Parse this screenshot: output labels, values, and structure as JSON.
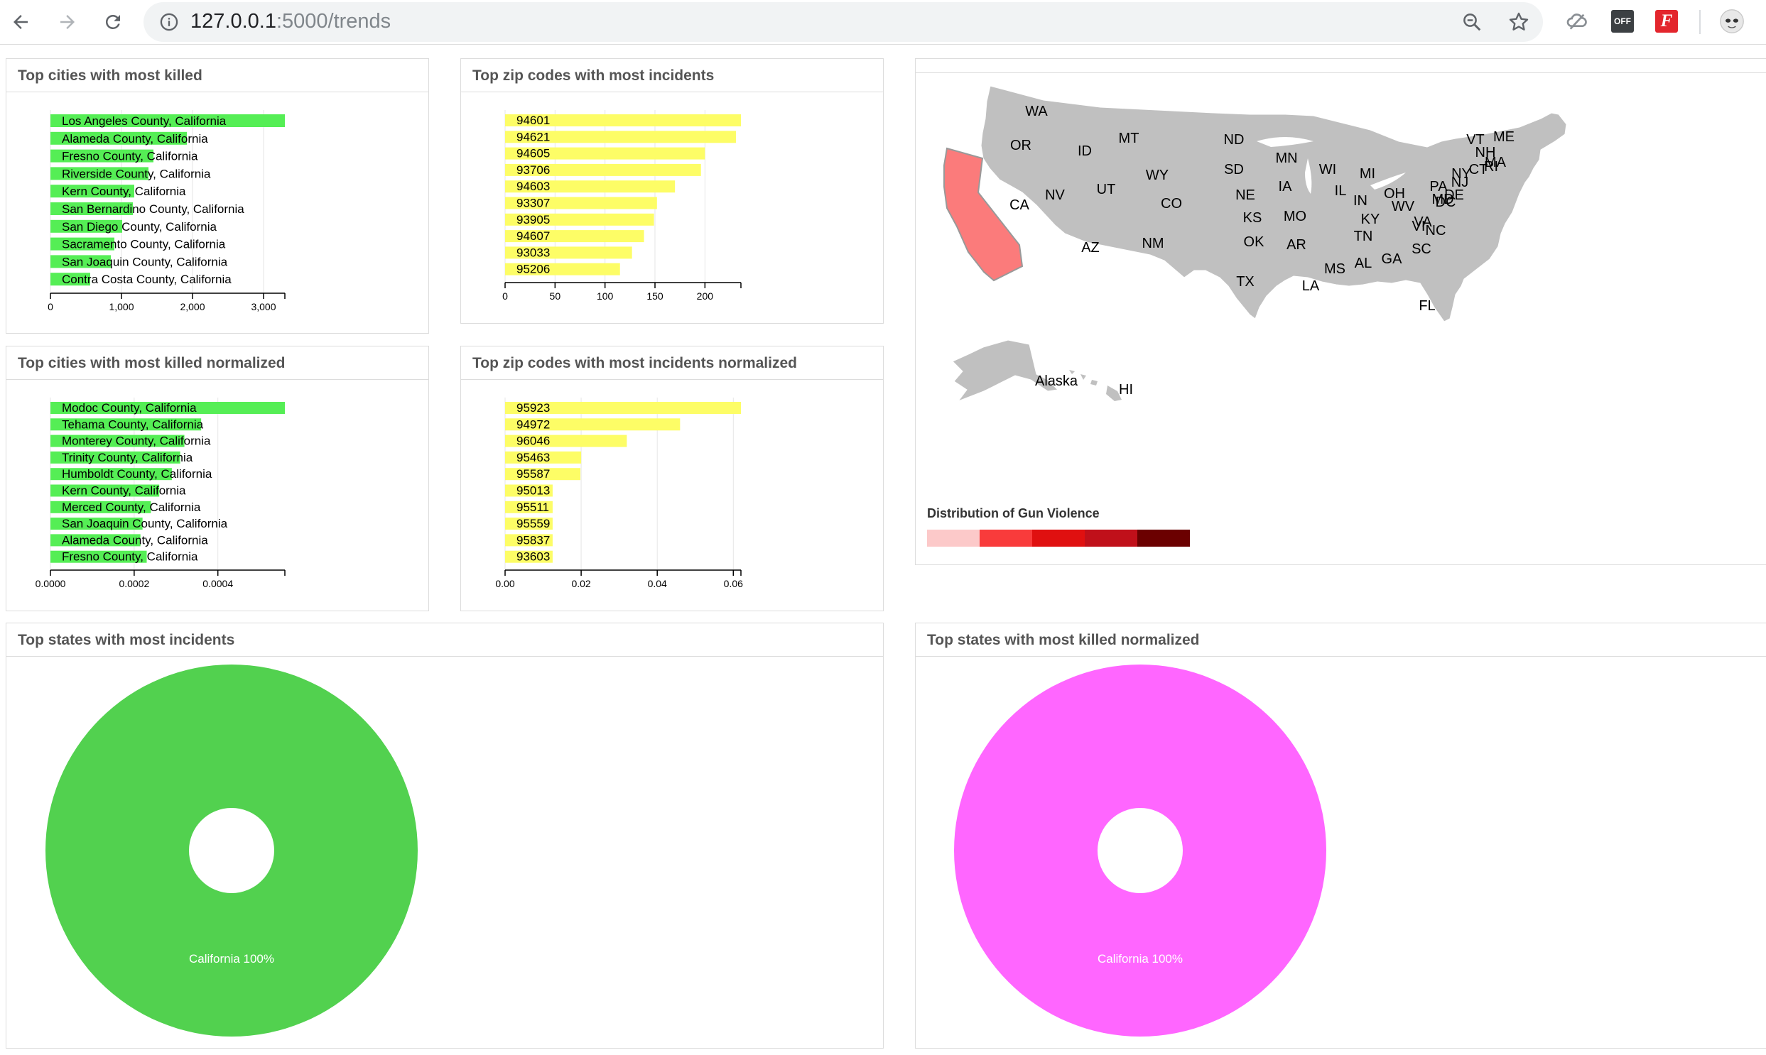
{
  "browser": {
    "url_host": "127.0.0.1",
    "url_path": ":5000/trends",
    "icons": [
      "back-arrow-icon",
      "forward-arrow-icon",
      "reload-icon",
      "info-icon",
      "zoom-icon",
      "star-icon",
      "extension-cloud-icon",
      "extension-off-icon",
      "extension-f-icon",
      "profile-avatar-icon"
    ],
    "ext_off_label": "OFF",
    "ext_f_label": "F"
  },
  "panels": {
    "cities_killed": {
      "title": "Top cities with most killed"
    },
    "zip_incidents": {
      "title": "Top zip codes with most incidents"
    },
    "cities_killed_norm": {
      "title": "Top cities with most killed normalized"
    },
    "zip_incidents_norm": {
      "title": "Top zip codes with most incidents normalized"
    },
    "states_incidents": {
      "title": "Top states with most incidents"
    },
    "states_killed_norm": {
      "title": "Top states with most killed normalized"
    }
  },
  "map": {
    "legend_title": "Distribution of Gun Violence",
    "legend_colors": [
      "#fcc9c9",
      "#f93b3b",
      "#e01010",
      "#c0101a",
      "#6b0000"
    ],
    "base_color": "#c0c0c0",
    "highlight_color": "#fb7b7b",
    "state_labels": [
      "WA",
      "OR",
      "CA",
      "NV",
      "ID",
      "MT",
      "WY",
      "UT",
      "CO",
      "AZ",
      "NM",
      "ND",
      "SD",
      "NE",
      "KS",
      "OK",
      "TX",
      "MN",
      "IA",
      "MO",
      "AR",
      "LA",
      "WI",
      "IL",
      "MI",
      "IN",
      "OH",
      "KY",
      "TN",
      "MS",
      "AL",
      "GA",
      "FL",
      "SC",
      "NC",
      "VA",
      "WV",
      "PA",
      "NY",
      "VT",
      "NH",
      "ME",
      "MA",
      "RI",
      "CT",
      "NJ",
      "DE",
      "MD",
      "DC",
      "VI",
      "Alaska",
      "HI"
    ]
  },
  "chart_data": [
    {
      "type": "bar",
      "orientation": "horizontal",
      "title": "Top cities with most killed",
      "color": "#55ee55",
      "categories": [
        "Los Angeles County, California",
        "Alameda County, California",
        "Fresno County, California",
        "Riverside County, California",
        "Kern County, California",
        "San Bernardino County, California",
        "San Diego County, California",
        "Sacramento County, California",
        "San Joaquin County, California",
        "Contra Costa County, California"
      ],
      "values": [
        3300,
        1920,
        1450,
        1380,
        1180,
        1160,
        1010,
        900,
        850,
        560
      ],
      "xlim": [
        0,
        3300
      ],
      "ticks": [
        "0",
        "1,000",
        "2,000",
        "3,000"
      ],
      "tick_values": [
        0,
        1000,
        2000,
        3000
      ]
    },
    {
      "type": "bar",
      "orientation": "horizontal",
      "title": "Top zip codes with most incidents",
      "color": "#fdfd66",
      "categories": [
        "94601",
        "94621",
        "94605",
        "93706",
        "94603",
        "93307",
        "93905",
        "94607",
        "93033",
        "95206"
      ],
      "values": [
        236,
        231,
        200,
        196,
        170,
        152,
        149,
        139,
        127,
        115
      ],
      "xlim": [
        0,
        236
      ],
      "ticks": [
        "0",
        "50",
        "100",
        "150",
        "200"
      ],
      "tick_values": [
        0,
        50,
        100,
        150,
        200
      ]
    },
    {
      "type": "bar",
      "orientation": "horizontal",
      "title": "Top cities with most killed normalized",
      "color": "#55ee55",
      "categories": [
        "Modoc County, California",
        "Tehama County, California",
        "Monterey County, California",
        "Trinity County, California",
        "Humboldt County, California",
        "Kern County, California",
        "Merced County, California",
        "San Joaquin County, California",
        "Alameda County, California",
        "Fresno County, California"
      ],
      "values": [
        0.00056,
        0.00036,
        0.00032,
        0.00031,
        0.00029,
        0.00026,
        0.00024,
        0.00022,
        0.000215,
        0.00023
      ],
      "xlim": [
        0,
        0.00056
      ],
      "ticks": [
        "0.0000",
        "0.0002",
        "0.0004"
      ],
      "tick_values": [
        0,
        0.0002,
        0.0004
      ]
    },
    {
      "type": "bar",
      "orientation": "horizontal",
      "title": "Top zip codes with most incidents normalized",
      "color": "#fdfd66",
      "categories": [
        "95923",
        "94972",
        "96046",
        "95463",
        "95587",
        "95013",
        "95511",
        "95559",
        "95837",
        "93603"
      ],
      "values": [
        0.062,
        0.046,
        0.032,
        0.02,
        0.0198,
        0.0125,
        0.0125,
        0.0125,
        0.0125,
        0.0125
      ],
      "xlim": [
        0,
        0.062
      ],
      "ticks": [
        "0.00",
        "0.02",
        "0.04",
        "0.06"
      ],
      "tick_values": [
        0,
        0.02,
        0.04,
        0.06
      ]
    },
    {
      "type": "pie",
      "title": "Top states with most incidents",
      "color": "#52d14f",
      "slices": [
        {
          "label": "California 100%",
          "value": 100
        }
      ]
    },
    {
      "type": "pie",
      "title": "Top states with most killed normalized",
      "color": "#ff66ff",
      "slices": [
        {
          "label": "California 100%",
          "value": 100
        }
      ]
    }
  ]
}
